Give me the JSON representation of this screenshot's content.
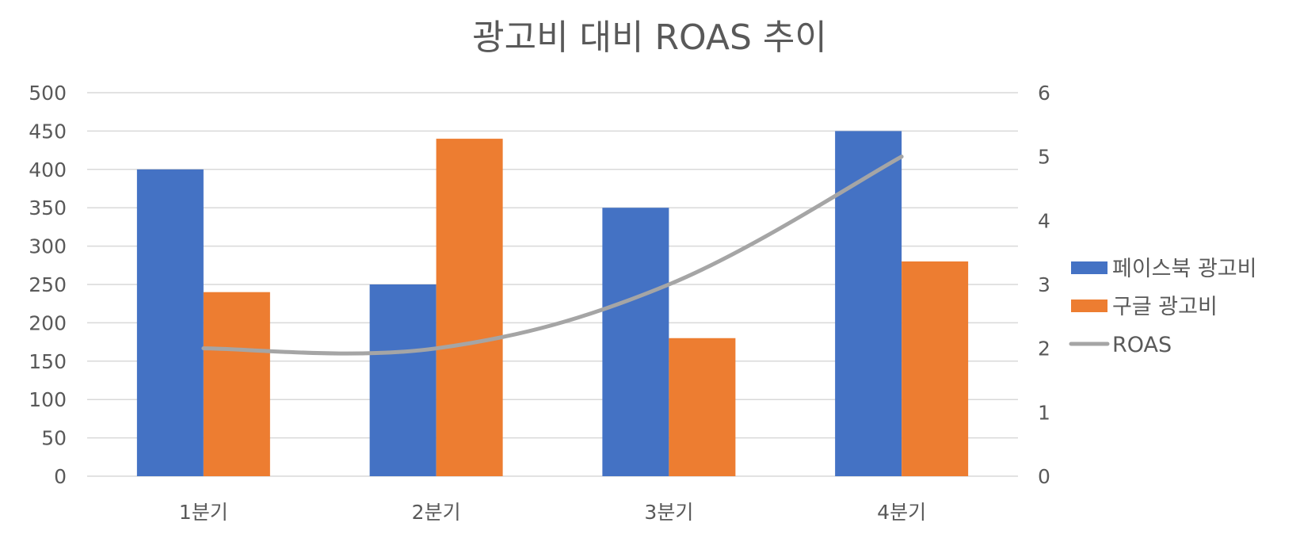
{
  "chart_data": {
    "type": "bar",
    "title": "광고비 대비 ROAS 추이",
    "categories": [
      "1분기",
      "2분기",
      "3분기",
      "4분기"
    ],
    "series": [
      {
        "name": "페이스북 광고비",
        "type": "bar",
        "axis": "left",
        "color": "#4472C4",
        "values": [
          400,
          250,
          350,
          450
        ]
      },
      {
        "name": "구글 광고비",
        "type": "bar",
        "axis": "left",
        "color": "#ED7D31",
        "values": [
          240,
          440,
          180,
          280
        ]
      },
      {
        "name": "ROAS",
        "type": "line",
        "axis": "right",
        "color": "#A5A5A5",
        "values": [
          2,
          2,
          3,
          5
        ]
      }
    ],
    "y_left": {
      "ylim": [
        0,
        500
      ],
      "ticks": [
        "0",
        "50",
        "100",
        "150",
        "200",
        "250",
        "300",
        "350",
        "400",
        "450",
        "500"
      ]
    },
    "y_right": {
      "ylim": [
        0,
        6
      ],
      "ticks": [
        "0",
        "1",
        "2",
        "3",
        "4",
        "5",
        "6"
      ]
    },
    "grid": true,
    "legend_position": "right"
  }
}
